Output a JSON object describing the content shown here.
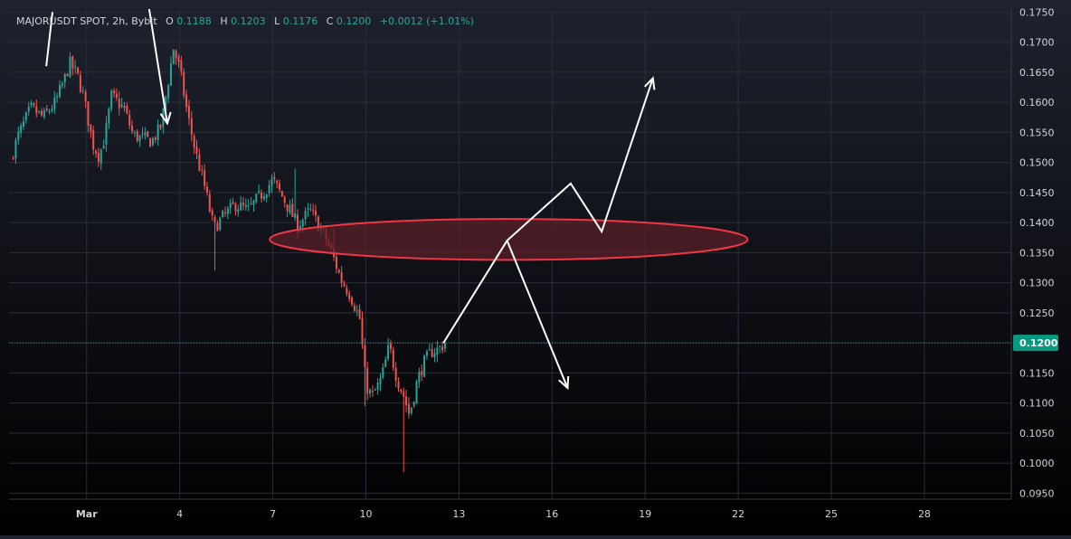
{
  "header": {
    "symbol": "MAJORUSDT SPOT, 2h, Bybit",
    "o_label": "O",
    "o_value": "0.1188",
    "h_label": "H",
    "h_value": "0.1203",
    "l_label": "L",
    "l_value": "0.1176",
    "c_label": "C",
    "c_value": "0.1200",
    "change": "+0.0012 (+1.01%)"
  },
  "colors": {
    "background_top": "#1e222d",
    "background_bottom": "#000000",
    "grid": "#2a2e39",
    "up": "#26a69a",
    "down": "#ef5350",
    "axis_text": "#d1d4dc",
    "price_tag": "#089981",
    "ellipse_stroke": "#f23645",
    "ellipse_fill": "#5a1f27",
    "drawing": "#ffffff"
  },
  "price_axis": {
    "labels": [
      "0.1750",
      "0.1700",
      "0.1650",
      "0.1600",
      "0.1550",
      "0.1500",
      "0.1450",
      "0.1400",
      "0.1350",
      "0.1300",
      "0.1250",
      "0.1200",
      "0.1150",
      "0.1100",
      "0.1050",
      "0.1000",
      "0.0950"
    ],
    "current_price": "0.1200"
  },
  "time_axis": {
    "labels": [
      "Mar",
      "4",
      "7",
      "10",
      "13",
      "16",
      "19",
      "22",
      "25",
      "28"
    ]
  },
  "chart_data": {
    "type": "candlestick",
    "symbol": "MAJORUSDT SPOT",
    "interval": "2h",
    "exchange": "Bybit",
    "x_unit": "day (Mar 1 = 1)",
    "ylim": [
      0.094,
      0.1755
    ],
    "xlim": [
      -1.5,
      30.8
    ],
    "last": {
      "open": 0.1188,
      "high": 0.1203,
      "low": 0.1176,
      "close": 0.12
    },
    "price_path": [
      [
        -1.45,
        0.1505
      ],
      [
        -1.2,
        0.1545
      ],
      [
        -0.8,
        0.159
      ],
      [
        -0.4,
        0.1575
      ],
      [
        0.0,
        0.16
      ],
      [
        0.3,
        0.164
      ],
      [
        0.45,
        0.1665
      ],
      [
        0.7,
        0.1645
      ],
      [
        0.9,
        0.161
      ],
      [
        1.2,
        0.153
      ],
      [
        1.4,
        0.151
      ],
      [
        1.6,
        0.1545
      ],
      [
        1.8,
        0.161
      ],
      [
        2.2,
        0.159
      ],
      [
        2.5,
        0.1545
      ],
      [
        2.8,
        0.154
      ],
      [
        3.1,
        0.1535
      ],
      [
        3.4,
        0.156
      ],
      [
        3.6,
        0.1625
      ],
      [
        3.8,
        0.169
      ],
      [
        4.0,
        0.1655
      ],
      [
        4.25,
        0.158
      ],
      [
        4.5,
        0.152
      ],
      [
        4.8,
        0.146
      ],
      [
        5.1,
        0.139
      ],
      [
        5.4,
        0.141
      ],
      [
        5.8,
        0.143
      ],
      [
        6.2,
        0.142
      ],
      [
        6.6,
        0.1445
      ],
      [
        7.0,
        0.147
      ],
      [
        7.4,
        0.1435
      ],
      [
        7.8,
        0.1395
      ],
      [
        8.2,
        0.142
      ],
      [
        8.6,
        0.1385
      ],
      [
        8.9,
        0.135
      ],
      [
        9.2,
        0.1305
      ],
      [
        9.5,
        0.128
      ],
      [
        9.8,
        0.124
      ],
      [
        10.0,
        0.113
      ],
      [
        10.2,
        0.111
      ],
      [
        10.5,
        0.114
      ],
      [
        10.75,
        0.1195
      ],
      [
        11.0,
        0.114
      ],
      [
        11.2,
        0.1115
      ],
      [
        11.4,
        0.108
      ],
      [
        11.65,
        0.1135
      ],
      [
        11.85,
        0.1165
      ],
      [
        12.1,
        0.1185
      ],
      [
        12.35,
        0.119
      ],
      [
        12.55,
        0.12
      ]
    ],
    "wicks": [
      {
        "x": 11.2,
        "low": 0.0985
      },
      {
        "x": 10.0,
        "low": 0.1095
      },
      {
        "x": 9.0,
        "high": 0.139
      },
      {
        "x": 5.1,
        "low": 0.132
      },
      {
        "x": 7.7,
        "high": 0.149
      }
    ],
    "drawings": [
      {
        "type": "ellipse",
        "center": [
          14.6,
          0.1372
        ],
        "x_radius": 7.7,
        "y_radius": 0.0034
      },
      {
        "type": "polyline",
        "points": [
          [
            -0.1,
            0.175
          ],
          [
            -0.3,
            0.166
          ]
        ]
      },
      {
        "type": "polyline",
        "points": [
          [
            3.0,
            0.176
          ],
          [
            3.6,
            0.1565
          ]
        ],
        "arrow": true
      },
      {
        "type": "polyline",
        "points": [
          [
            12.5,
            0.12
          ],
          [
            14.55,
            0.137
          ],
          [
            16.6,
            0.1465
          ],
          [
            17.6,
            0.1385
          ],
          [
            19.25,
            0.164
          ]
        ],
        "arrow": true
      },
      {
        "type": "polyline",
        "points": [
          [
            14.55,
            0.137
          ],
          [
            16.5,
            0.1125
          ]
        ],
        "arrow": true
      }
    ]
  }
}
